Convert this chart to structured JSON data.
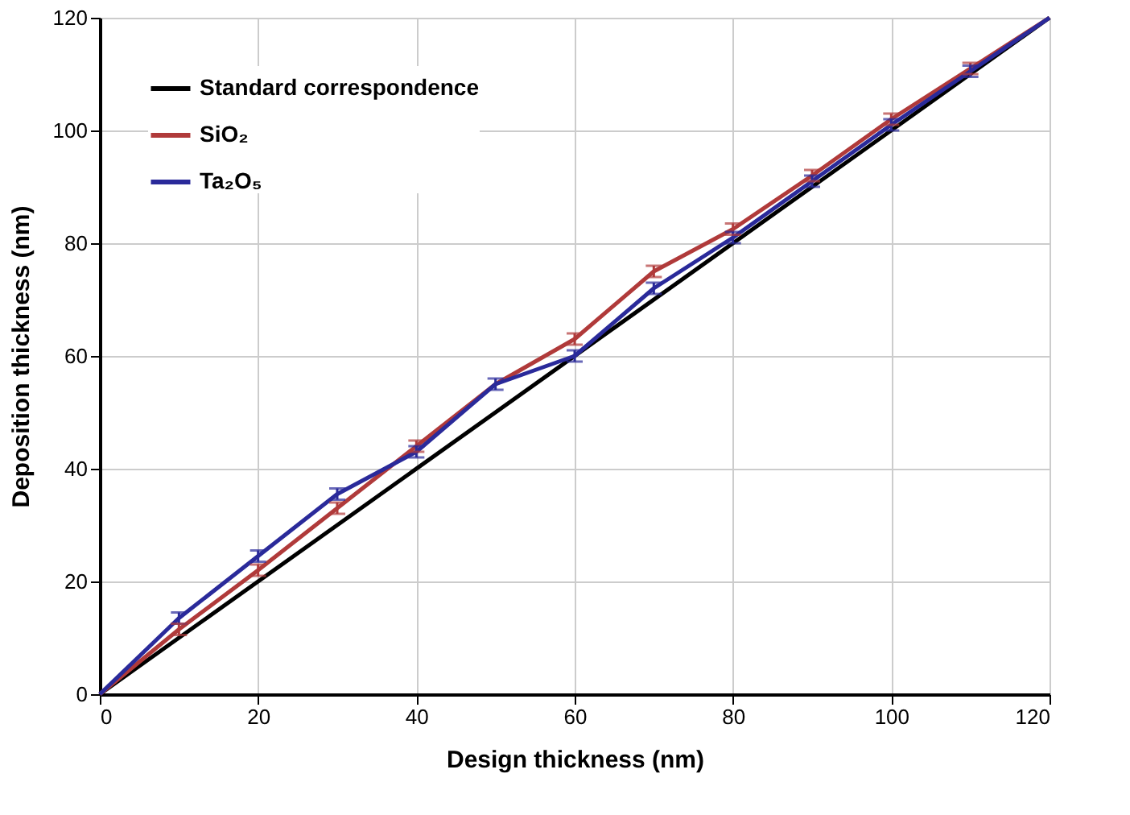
{
  "chart_data": {
    "type": "line",
    "xlabel": "Design thickness (nm)",
    "ylabel": "Deposition thickness (nm)",
    "x": [
      0,
      10,
      20,
      30,
      40,
      50,
      60,
      70,
      80,
      90,
      100,
      110,
      120
    ],
    "series": [
      {
        "name": "Standard correspondence",
        "color": "#000000",
        "x": [
          0,
          120
        ],
        "values": [
          0,
          120
        ]
      },
      {
        "name": "SiO₂",
        "color": "#b03a3a",
        "values": [
          0,
          11.5,
          22,
          33,
          44,
          55,
          63,
          75,
          82.5,
          92,
          102,
          111,
          120
        ],
        "errors": [
          null,
          1,
          1,
          1,
          1,
          null,
          1,
          1,
          1,
          1,
          1,
          1,
          null
        ]
      },
      {
        "name": "Ta₂O₅",
        "color": "#2a2a9a",
        "values": [
          0,
          13.5,
          24.5,
          35.5,
          43,
          55,
          60,
          72,
          81,
          91,
          101,
          110.5,
          120
        ],
        "errors": [
          null,
          1,
          1,
          1,
          1,
          1,
          1,
          1,
          1,
          1,
          1,
          1,
          null
        ]
      }
    ],
    "xlim": [
      0,
      120
    ],
    "ylim": [
      0,
      120
    ],
    "xticks": [
      0,
      20,
      40,
      60,
      80,
      100,
      120
    ],
    "yticks": [
      0,
      20,
      40,
      60,
      80,
      100,
      120
    ],
    "grid": true,
    "legend": "top left",
    "line_style": "solid",
    "marker": "none"
  }
}
